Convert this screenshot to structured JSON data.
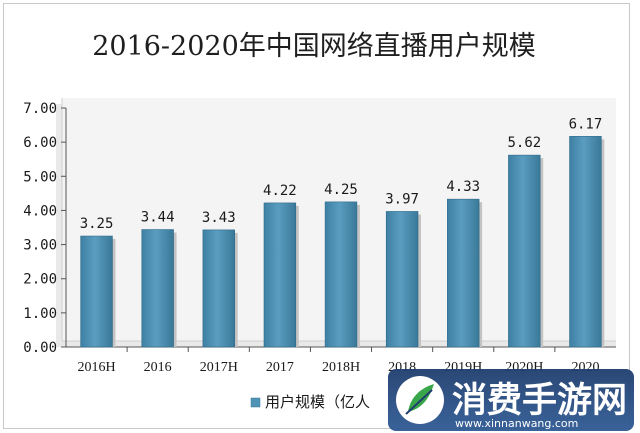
{
  "chart_data": {
    "type": "bar",
    "title": "2016-2020年中国网络直播用户规模",
    "categories": [
      "2016H",
      "2016",
      "2017H",
      "2017",
      "2018H",
      "2018",
      "2019H",
      "2020H",
      "2020"
    ],
    "series": [
      {
        "name": "用户规模（亿人",
        "values": [
          3.25,
          3.44,
          3.43,
          4.22,
          4.25,
          3.97,
          4.33,
          5.62,
          6.17
        ]
      }
    ],
    "data_labels": [
      "3.25",
      "3.44",
      "3.43",
      "4.22",
      "4.25",
      "3.97",
      "4.33",
      "5.62",
      "6.17"
    ],
    "y_ticks": [
      "0.00",
      "1.00",
      "2.00",
      "3.00",
      "4.00",
      "5.00",
      "6.00",
      "7.00"
    ],
    "ylim": [
      0,
      7
    ],
    "grid": false,
    "legend_position": "bottom",
    "bar_color": "#4f94b6"
  },
  "watermark": {
    "text": "消费手游网",
    "url": "www.xinnanwang.com"
  }
}
